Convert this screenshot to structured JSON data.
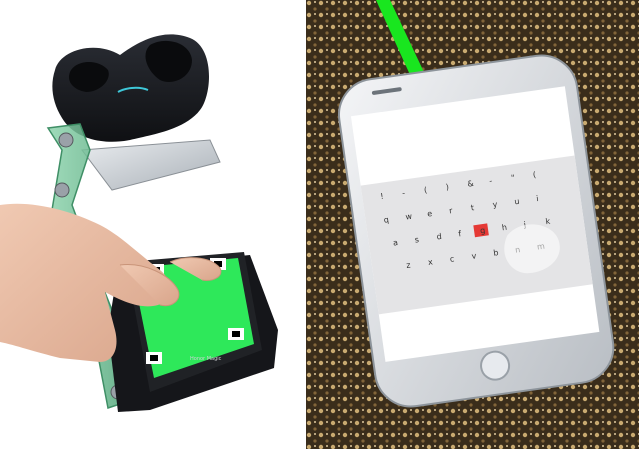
{
  "left_panel": {
    "phone_marker_text": "Honor Magic"
  },
  "right_panel": {
    "keyboard": {
      "rows": [
        [
          "!",
          "-",
          "(",
          ")",
          "&",
          "-",
          "\"",
          "("
        ],
        [
          "q",
          "w",
          "e",
          "r",
          "t",
          "y",
          "u",
          "i"
        ],
        [
          "a",
          "s",
          "d",
          "f",
          "g",
          "h",
          "j",
          "k"
        ],
        [
          "z",
          "x",
          "c",
          "v",
          "b",
          "n",
          "m"
        ]
      ],
      "highlighted_key": "g"
    }
  },
  "colors": {
    "laser_green": "#19e61f",
    "screen_green": "#2ee85a",
    "acrylic_green": "#6fbf93",
    "tracker_black": "#1b1d22",
    "highlight_red": "#e53935"
  }
}
